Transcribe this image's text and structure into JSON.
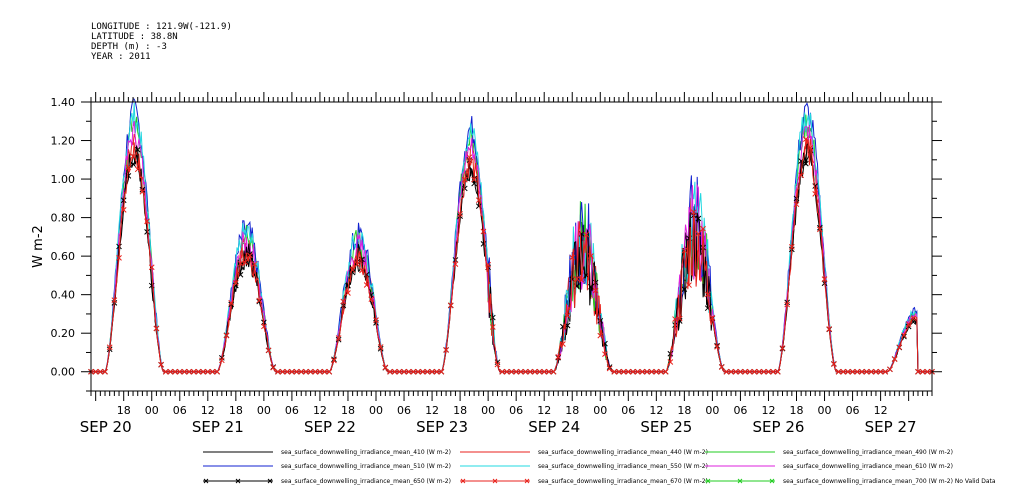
{
  "header": {
    "longitude": "LONGITUDE : 121.9W(-121.9)",
    "latitude": "LATITUDE : 38.8N",
    "depth": "DEPTH (m) : -3",
    "year": "YEAR : 2011"
  },
  "chart_data": {
    "type": "line",
    "ylabel": "W m-2",
    "xlabel": "",
    "ylim": [
      -0.1,
      1.4
    ],
    "xlim_hours": [
      11,
      191
    ],
    "y_ticks": [
      "0.00",
      "0.20",
      "0.40",
      "0.60",
      "0.80",
      "1.00",
      "1.20",
      "1.40"
    ],
    "x_hour_ticks": [
      "18",
      "00",
      "06",
      "12",
      "18",
      "00",
      "06",
      "12",
      "18",
      "00",
      "06",
      "12",
      "18",
      "00",
      "06",
      "12",
      "18",
      "00",
      "06",
      "12",
      "18",
      "00",
      "06",
      "12",
      "18",
      "00",
      "06",
      "12"
    ],
    "date_labels": [
      "SEP 20",
      "SEP 21",
      "SEP 22",
      "SEP 23",
      "SEP 24",
      "SEP 25",
      "SEP 26",
      "SEP 27"
    ],
    "days": [
      {
        "date": "SEP 20",
        "peak": 1.15
      },
      {
        "date": "SEP 21",
        "peak": 0.62
      },
      {
        "date": "SEP 22",
        "peak": 0.6
      },
      {
        "date": "SEP 23",
        "peak": 1.08
      },
      {
        "date": "SEP 24",
        "peak": 0.6
      },
      {
        "date": "SEP 25",
        "peak": 0.68
      },
      {
        "date": "SEP 26",
        "peak": 1.15
      }
    ],
    "series": [
      {
        "name": "sea_surface_downwelling_irradiance_mean_410 (W m-2)",
        "color": "#000000",
        "scale": 0.98
      },
      {
        "name": "sea_surface_downwelling_irradiance_mean_440 (W m-2)",
        "color": "#e8221c",
        "scale": 1.04
      },
      {
        "name": "sea_surface_downwelling_irradiance_mean_490 (W m-2)",
        "color": "#22cc22",
        "scale": 1.12
      },
      {
        "name": "sea_surface_downwelling_irradiance_mean_510 (W m-2)",
        "color": "#1020d0",
        "scale": 1.17
      },
      {
        "name": "sea_surface_downwelling_irradiance_mean_550 (W m-2)",
        "color": "#22d8e0",
        "scale": 1.15
      },
      {
        "name": "sea_surface_downwelling_irradiance_mean_610 (W m-2)",
        "color": "#dd22dd",
        "scale": 1.08
      },
      {
        "name": "sea_surface_downwelling_irradiance_mean_650 (W m-2)",
        "color": "#000000",
        "scale": 0.99,
        "marker": "x"
      },
      {
        "name": "sea_surface_downwelling_irradiance_mean_670 (W m-2)",
        "color": "#e8221c",
        "scale": 1.0,
        "marker": "x"
      },
      {
        "name": "sea_surface_downwelling_irradiance_mean_700 (W m-2) No Valid Data",
        "color": "#22cc22",
        "scale": 0,
        "marker": "x"
      }
    ]
  }
}
